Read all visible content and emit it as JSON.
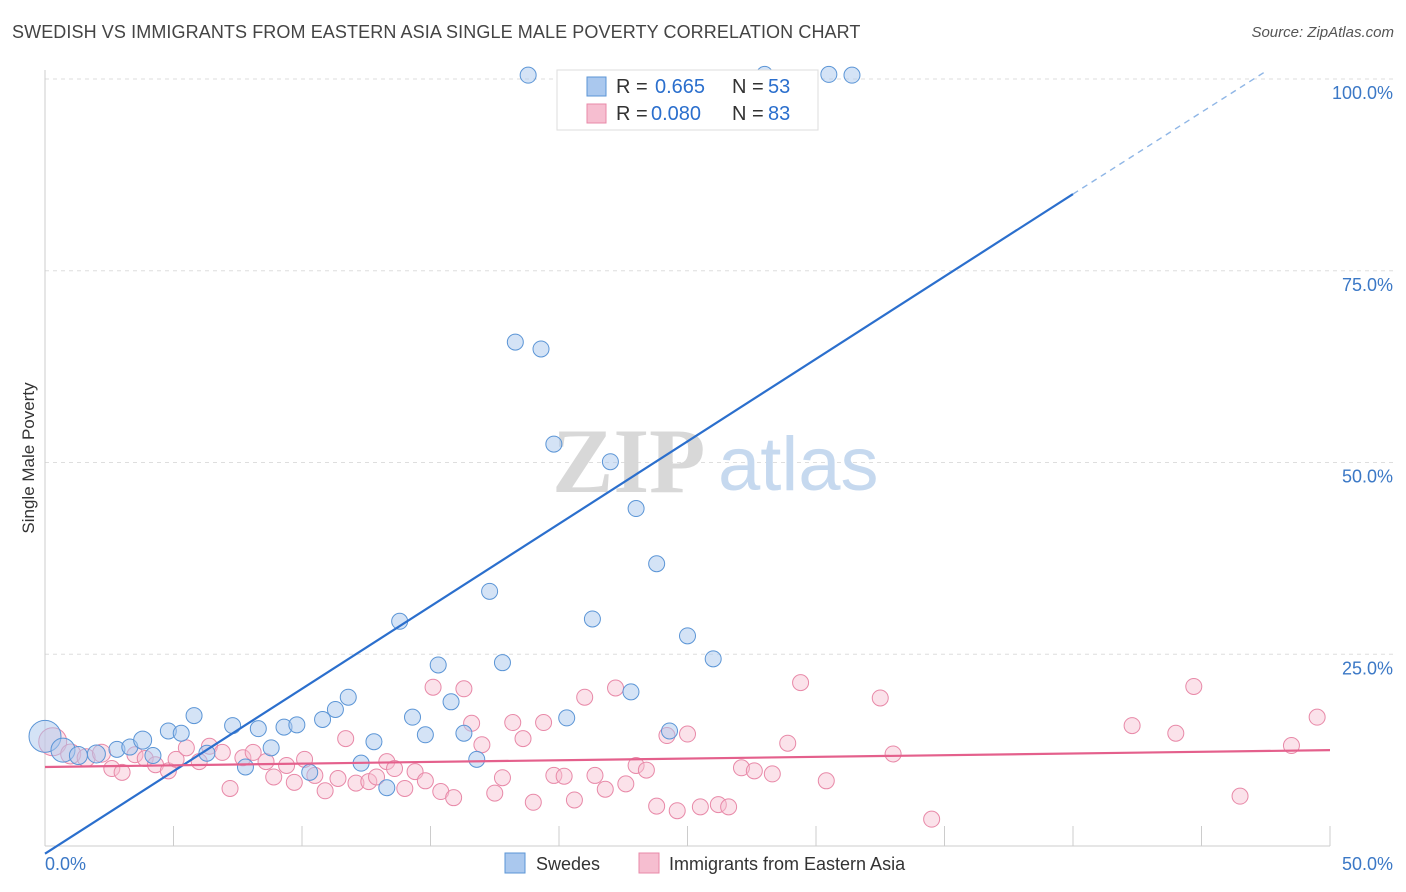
{
  "header": {
    "title": "SWEDISH VS IMMIGRANTS FROM EASTERN ASIA SINGLE MALE POVERTY CORRELATION CHART",
    "source": "Source: ZipAtlas.com"
  },
  "watermark": {
    "zip": "ZIP",
    "atlas": "atlas"
  },
  "legend": {
    "r_label": "R =",
    "n_label": "N =",
    "rows": [
      {
        "r": "0.665",
        "n": "53"
      },
      {
        "r": "0.080",
        "n": "83"
      }
    ]
  },
  "chart_data": {
    "type": "scatter",
    "ylabel": "Single Male Poverty",
    "xlabel": "",
    "xlim": [
      0,
      50
    ],
    "ylim": [
      0,
      103
    ],
    "x_tick_labels": [
      "0.0%",
      "50.0%"
    ],
    "y_tick_labels": [
      "100.0%",
      "75.0%",
      "50.0%",
      "25.0%"
    ],
    "y_ticks": [
      100,
      75,
      50,
      25
    ],
    "grid": true,
    "legend_position": "bottom-center",
    "colors": {
      "swedes_fill": "#aac8ee",
      "swedes_stroke": "#5b95d6",
      "swedes_line": "#2b6fcd",
      "immigrants_fill": "#f6bed0",
      "immigrants_stroke": "#e889a8",
      "immigrants_line": "#e4608c"
    },
    "series": [
      {
        "name": "Swedes",
        "trend": {
          "x0": 0,
          "y0": -1,
          "x1": 40,
          "y1": 85,
          "dash_to_x": 47.5,
          "dash_to_y": 101
        },
        "points": [
          [
            0.0,
            14.3,
            16
          ],
          [
            0.7,
            12.5,
            12
          ],
          [
            1.3,
            11.8,
            9
          ],
          [
            2.0,
            12.0,
            9
          ],
          [
            2.8,
            12.6,
            8
          ],
          [
            3.3,
            12.9,
            8
          ],
          [
            3.8,
            13.8,
            9
          ],
          [
            4.2,
            11.8,
            8
          ],
          [
            4.8,
            15.0,
            8
          ],
          [
            5.3,
            14.7,
            8
          ],
          [
            5.8,
            17.0,
            8
          ],
          [
            6.3,
            12.1,
            8
          ],
          [
            7.3,
            15.7,
            8
          ],
          [
            7.8,
            10.3,
            8
          ],
          [
            8.3,
            15.3,
            8
          ],
          [
            8.8,
            12.8,
            8
          ],
          [
            9.3,
            15.5,
            8
          ],
          [
            9.8,
            15.8,
            8
          ],
          [
            10.3,
            9.6,
            8
          ],
          [
            10.8,
            16.5,
            8
          ],
          [
            11.3,
            17.8,
            8
          ],
          [
            11.8,
            19.4,
            8
          ],
          [
            12.3,
            10.8,
            8
          ],
          [
            12.8,
            13.6,
            8
          ],
          [
            13.3,
            7.6,
            8
          ],
          [
            13.8,
            29.3,
            8
          ],
          [
            14.3,
            16.8,
            8
          ],
          [
            14.8,
            14.5,
            8
          ],
          [
            15.3,
            23.6,
            8
          ],
          [
            15.8,
            18.8,
            8
          ],
          [
            16.3,
            14.7,
            8
          ],
          [
            16.8,
            11.3,
            8
          ],
          [
            17.3,
            33.2,
            8
          ],
          [
            17.8,
            23.9,
            8
          ],
          [
            18.3,
            65.7,
            8
          ],
          [
            18.8,
            100.5,
            8
          ],
          [
            19.3,
            64.8,
            8
          ],
          [
            19.8,
            52.4,
            8
          ],
          [
            20.3,
            16.7,
            8
          ],
          [
            21.3,
            29.6,
            8
          ],
          [
            22.0,
            50.1,
            8
          ],
          [
            22.8,
            20.1,
            8
          ],
          [
            23.0,
            44.0,
            8
          ],
          [
            23.8,
            36.8,
            8
          ],
          [
            24.3,
            15.0,
            8
          ],
          [
            25.0,
            27.4,
            8
          ],
          [
            26.0,
            24.4,
            8
          ],
          [
            28.0,
            100.6,
            8
          ],
          [
            30.5,
            100.6,
            8
          ],
          [
            31.4,
            100.5,
            8
          ]
        ]
      },
      {
        "name": "Immigrants from Eastern Asia",
        "trend": {
          "x0": 0,
          "y0": 10.3,
          "x1": 50,
          "y1": 12.5
        },
        "points": [
          [
            0.3,
            13.6,
            14
          ],
          [
            1.0,
            12.0,
            10
          ],
          [
            1.6,
            11.5,
            9
          ],
          [
            2.2,
            12.1,
            9
          ],
          [
            2.6,
            10.1,
            8
          ],
          [
            3.0,
            9.6,
            8
          ],
          [
            3.5,
            11.9,
            8
          ],
          [
            3.9,
            11.4,
            8
          ],
          [
            4.3,
            10.6,
            8
          ],
          [
            4.8,
            9.8,
            8
          ],
          [
            5.1,
            11.3,
            8
          ],
          [
            5.5,
            12.8,
            8
          ],
          [
            6.0,
            11.0,
            8
          ],
          [
            6.4,
            13.0,
            8
          ],
          [
            6.9,
            12.2,
            8
          ],
          [
            7.2,
            7.5,
            8
          ],
          [
            7.7,
            11.5,
            8
          ],
          [
            8.1,
            12.2,
            8
          ],
          [
            8.6,
            11.0,
            8
          ],
          [
            8.9,
            9.0,
            8
          ],
          [
            9.4,
            10.5,
            8
          ],
          [
            9.7,
            8.3,
            8
          ],
          [
            10.1,
            11.3,
            8
          ],
          [
            10.5,
            9.2,
            8
          ],
          [
            10.9,
            7.2,
            8
          ],
          [
            11.4,
            8.8,
            8
          ],
          [
            11.7,
            14.0,
            8
          ],
          [
            12.1,
            8.2,
            8
          ],
          [
            12.6,
            8.4,
            8
          ],
          [
            12.9,
            9.0,
            8
          ],
          [
            13.3,
            11.0,
            8
          ],
          [
            13.6,
            10.1,
            8
          ],
          [
            14.0,
            7.5,
            8
          ],
          [
            14.4,
            9.7,
            8
          ],
          [
            14.8,
            8.5,
            8
          ],
          [
            15.1,
            20.7,
            8
          ],
          [
            15.4,
            7.1,
            8
          ],
          [
            15.9,
            6.3,
            8
          ],
          [
            16.3,
            20.5,
            8
          ],
          [
            16.6,
            16.0,
            8
          ],
          [
            17.0,
            13.2,
            8
          ],
          [
            17.5,
            6.9,
            8
          ],
          [
            17.8,
            8.9,
            8
          ],
          [
            18.2,
            16.1,
            8
          ],
          [
            18.6,
            14.0,
            8
          ],
          [
            19.0,
            5.7,
            8
          ],
          [
            19.4,
            16.1,
            8
          ],
          [
            19.8,
            9.2,
            8
          ],
          [
            20.2,
            9.1,
            8
          ],
          [
            20.6,
            6.0,
            8
          ],
          [
            21.0,
            19.4,
            8
          ],
          [
            21.4,
            9.2,
            8
          ],
          [
            21.8,
            7.4,
            8
          ],
          [
            22.2,
            20.6,
            8
          ],
          [
            22.6,
            8.1,
            8
          ],
          [
            23.0,
            10.5,
            8
          ],
          [
            23.4,
            9.9,
            8
          ],
          [
            23.8,
            5.2,
            8
          ],
          [
            24.2,
            14.4,
            8
          ],
          [
            24.6,
            4.6,
            8
          ],
          [
            25.0,
            14.6,
            8
          ],
          [
            25.5,
            5.1,
            8
          ],
          [
            26.2,
            5.4,
            8
          ],
          [
            26.6,
            5.1,
            8
          ],
          [
            27.1,
            10.2,
            8
          ],
          [
            27.6,
            9.8,
            8
          ],
          [
            28.3,
            9.4,
            8
          ],
          [
            28.9,
            13.4,
            8
          ],
          [
            29.4,
            21.3,
            8
          ],
          [
            30.4,
            8.5,
            8
          ],
          [
            32.5,
            19.3,
            8
          ],
          [
            33.0,
            12.0,
            8
          ],
          [
            34.5,
            3.5,
            8
          ],
          [
            42.3,
            15.7,
            8
          ],
          [
            44.0,
            14.7,
            8
          ],
          [
            44.7,
            20.8,
            8
          ],
          [
            46.5,
            6.5,
            8
          ],
          [
            48.5,
            13.1,
            8
          ],
          [
            49.5,
            16.8,
            8
          ]
        ]
      }
    ]
  },
  "bottom_legend": [
    {
      "label": "Swedes"
    },
    {
      "label": "Immigrants from Eastern Asia"
    }
  ]
}
